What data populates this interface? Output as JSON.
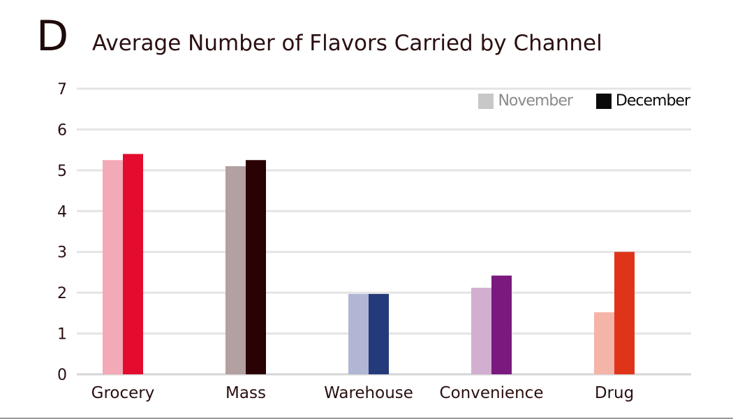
{
  "panel_label": "D",
  "chart_data": {
    "type": "bar",
    "title": "Average Number of Flavors Carried by Channel",
    "categories": [
      "Grocery",
      "Mass",
      "Warehouse",
      "Convenience",
      "Drug"
    ],
    "series": [
      {
        "name": "November",
        "values": [
          5.25,
          5.1,
          1.97,
          2.12,
          1.52
        ],
        "colors": [
          "#f4a9b6",
          "#b3a0a1",
          "#b0b6d4",
          "#d2afd0",
          "#f4b4a8"
        ],
        "legend_color": "#c8c8c8"
      },
      {
        "name": "December",
        "values": [
          5.4,
          5.25,
          1.97,
          2.42,
          3.0
        ],
        "colors": [
          "#e30b2e",
          "#2a0104",
          "#253a7b",
          "#7a1a7f",
          "#e0341a"
        ],
        "legend_color": "#0a0a0a"
      }
    ],
    "yticks": [
      "0",
      "1",
      "2",
      "3",
      "4",
      "5",
      "6",
      "7"
    ],
    "ylim": [
      0,
      7
    ],
    "xlabel": "",
    "ylabel": "",
    "grid": true,
    "legend_position": "top-right"
  }
}
